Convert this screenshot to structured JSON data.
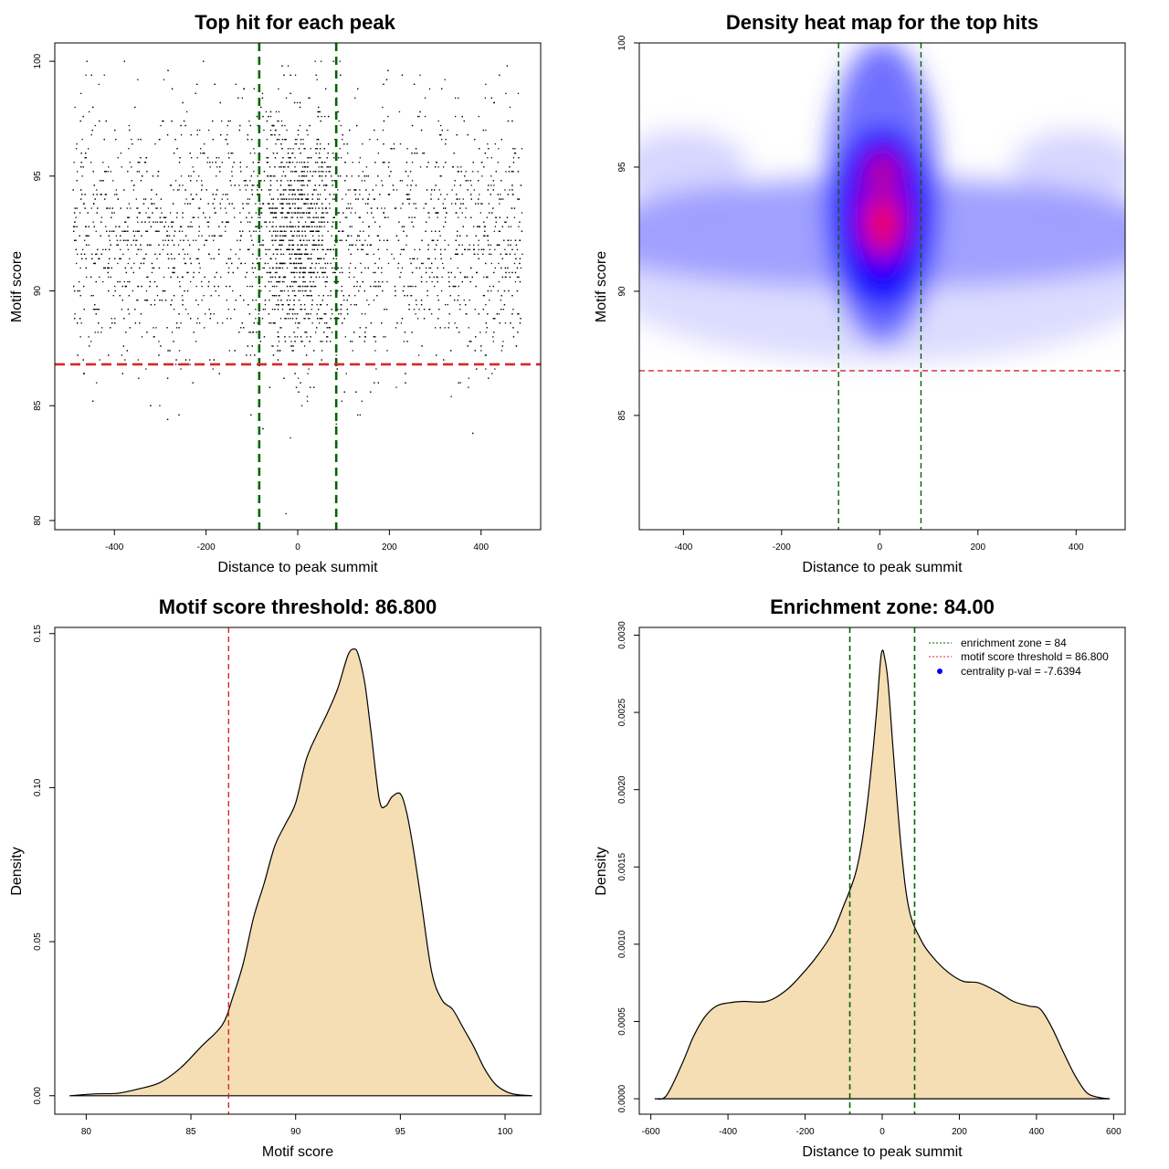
{
  "colors": {
    "scatter_point": "#000000",
    "threshold_line": "#d62728",
    "zone_line": "#006400",
    "density_fill": "#f5deb3",
    "density_stroke": "#000000",
    "heat_low": "#ffffff",
    "heat_mid": "#0000ff",
    "heat_high": "#ff0000",
    "legend_point": "#0000ff"
  },
  "chart_data": [
    {
      "id": "scatter",
      "type": "scatter",
      "title": "Top hit for each peak",
      "xlabel": "Distance to peak summit",
      "ylabel": "Motif score",
      "xlim": [
        -530,
        530
      ],
      "ylim": [
        79.6,
        100.8
      ],
      "xticks": [
        "-400",
        "-200",
        "0",
        "200",
        "400"
      ],
      "xtick_values": [
        -400,
        -200,
        0,
        200,
        400
      ],
      "yticks": [
        "80",
        "85",
        "90",
        "95",
        "100"
      ],
      "ytick_values": [
        80,
        85,
        90,
        95,
        100
      ],
      "threshold_y": 86.8,
      "zone_x": [
        -84,
        84
      ],
      "distribution": {
        "n_points": 4500,
        "central_fraction": 0.28,
        "central_x_sd": 45,
        "x_range": [
          -490,
          490
        ],
        "score_mean": 92.4,
        "score_sd": 2.8,
        "score_range": [
          80.3,
          100
        ]
      }
    },
    {
      "id": "heatmap",
      "type": "heatmap",
      "title": "Density heat map for the top hits",
      "xlabel": "Distance to peak summit",
      "ylabel": "Motif score",
      "xlim": [
        -490,
        500
      ],
      "ylim": [
        80.4,
        100
      ],
      "xticks": [
        "-400",
        "-200",
        "0",
        "200",
        "400"
      ],
      "xtick_values": [
        -400,
        -200,
        0,
        200,
        400
      ],
      "yticks": [
        "85",
        "90",
        "95",
        "100"
      ],
      "ytick_values": [
        85,
        90,
        95,
        100
      ],
      "threshold_y": 86.8,
      "zone_x": [
        -84,
        84
      ],
      "color_scale": [
        "white",
        "blue",
        "red"
      ]
    },
    {
      "id": "score-density",
      "type": "area",
      "title": "Motif score threshold: 86.800",
      "xlabel": "Motif score",
      "ylabel": "Density",
      "xlim": [
        78.5,
        101.7
      ],
      "ylim": [
        -0.006,
        0.152
      ],
      "xticks": [
        "80",
        "85",
        "90",
        "95",
        "100"
      ],
      "xtick_values": [
        80,
        85,
        90,
        95,
        100
      ],
      "yticks": [
        "0.00",
        "0.05",
        "0.10",
        "0.15"
      ],
      "ytick_values": [
        0,
        0.05,
        0.1,
        0.15
      ],
      "threshold_x": 86.8,
      "x": [
        79.2,
        80.5,
        81.5,
        82.5,
        83.5,
        84.5,
        85.5,
        86.5,
        87.0,
        87.5,
        88.0,
        88.5,
        89.0,
        89.5,
        90.0,
        90.5,
        91.0,
        91.5,
        92.0,
        92.5,
        92.8,
        93.0,
        93.3,
        93.6,
        94.0,
        94.3,
        94.6,
        95.0,
        95.3,
        95.6,
        96.0,
        96.5,
        97.0,
        97.5,
        98.0,
        98.5,
        99.0,
        99.5,
        100.0,
        100.5,
        101.3
      ],
      "y": [
        0.0,
        0.0006,
        0.0008,
        0.0022,
        0.0042,
        0.009,
        0.016,
        0.023,
        0.032,
        0.043,
        0.058,
        0.069,
        0.081,
        0.088,
        0.095,
        0.109,
        0.117,
        0.124,
        0.132,
        0.143,
        0.145,
        0.143,
        0.134,
        0.118,
        0.096,
        0.094,
        0.097,
        0.098,
        0.092,
        0.081,
        0.063,
        0.04,
        0.031,
        0.028,
        0.022,
        0.016,
        0.009,
        0.004,
        0.0015,
        0.0004,
        0.0
      ]
    },
    {
      "id": "distance-density",
      "type": "area",
      "title": "Enrichment zone: 84.00",
      "xlabel": "Distance to peak summit",
      "ylabel": "Density",
      "xlim": [
        -630,
        630
      ],
      "ylim": [
        -0.0001,
        0.00305
      ],
      "xticks": [
        "-600",
        "-400",
        "-200",
        "0",
        "200",
        "400",
        "600"
      ],
      "xtick_values": [
        -600,
        -400,
        -200,
        0,
        200,
        400,
        600
      ],
      "yticks": [
        "0.0000",
        "0.0005",
        "0.0010",
        "0.0015",
        "0.0020",
        "0.0025",
        "0.0030"
      ],
      "ytick_values": [
        0,
        0.0005,
        0.001,
        0.0015,
        0.002,
        0.0025,
        0.003
      ],
      "zone_x": [
        -84,
        84
      ],
      "x": [
        -590,
        -560,
        -520,
        -490,
        -460,
        -430,
        -400,
        -360,
        -300,
        -250,
        -210,
        -170,
        -130,
        -100,
        -70,
        -50,
        -30,
        -15,
        -5,
        0,
        5,
        15,
        30,
        50,
        70,
        100,
        130,
        170,
        210,
        250,
        300,
        340,
        380,
        410,
        440,
        470,
        500,
        530,
        560,
        590
      ],
      "y": [
        0.0,
        2e-05,
        0.00022,
        0.0004,
        0.00053,
        0.0006,
        0.00062,
        0.00063,
        0.00063,
        0.0007,
        0.0008,
        0.00092,
        0.00107,
        0.00125,
        0.00145,
        0.0017,
        0.0021,
        0.0025,
        0.00282,
        0.0029,
        0.00287,
        0.0027,
        0.0022,
        0.0016,
        0.00122,
        0.00103,
        0.00092,
        0.00082,
        0.00076,
        0.00075,
        0.00069,
        0.00063,
        0.0006,
        0.00058,
        0.00046,
        0.0003,
        0.00015,
        4e-05,
        1e-05,
        0.0
      ],
      "legend": [
        {
          "label": "enrichment zone = 84",
          "kind": "dotted-line",
          "color": "#006400"
        },
        {
          "label": "motif score threshold = 86.800",
          "kind": "dotted-line",
          "color": "#d62728"
        },
        {
          "label": "centrality p-val = -7.6394",
          "kind": "point",
          "color": "#0000ff"
        }
      ],
      "legend_position": "top-right"
    }
  ]
}
